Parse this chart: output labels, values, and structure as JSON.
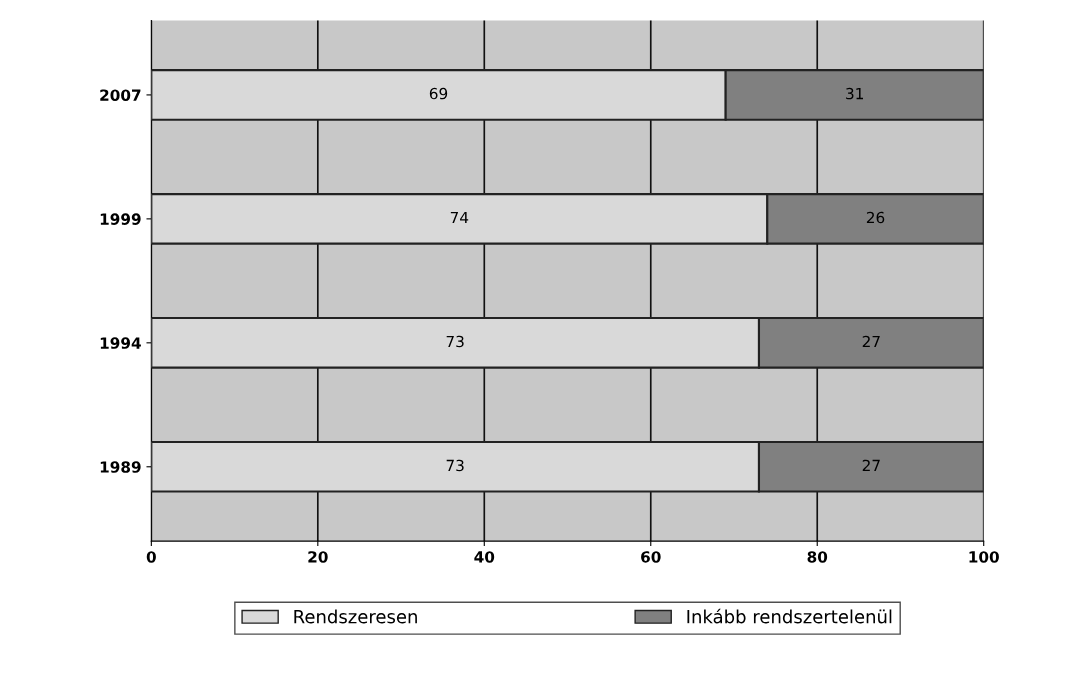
{
  "chart_data": {
    "type": "bar",
    "orientation": "horizontal",
    "stacked": true,
    "categories": [
      "2007",
      "1999",
      "1994",
      "1989"
    ],
    "series": [
      {
        "name": "Rendszeresen",
        "color": "#d9d9d9",
        "values": [
          69,
          74,
          73,
          73
        ]
      },
      {
        "name": "Inkább rendszertelenül",
        "color": "#808080",
        "values": [
          31,
          26,
          27,
          27
        ]
      }
    ],
    "data_labels": true,
    "xlim": [
      0,
      100
    ],
    "xticks": [
      0,
      20,
      40,
      60,
      80,
      100
    ],
    "grid": "x",
    "legend": "bottom"
  }
}
